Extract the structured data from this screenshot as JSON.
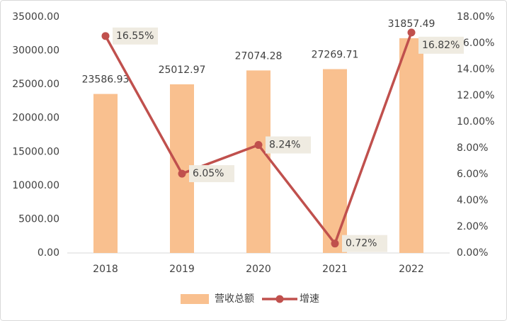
{
  "chart_data": {
    "type": "bar",
    "categories": [
      "2018",
      "2019",
      "2020",
      "2021",
      "2022"
    ],
    "series": [
      {
        "name": "营收总额",
        "type": "bar",
        "color": "#f9c08f",
        "values": [
          23586.93,
          25012.97,
          27074.28,
          27269.71,
          31857.49
        ]
      },
      {
        "name": "增速",
        "type": "line",
        "axis": "y2",
        "color": "#c0504d",
        "values": [
          16.55,
          6.05,
          8.24,
          0.72,
          16.82
        ],
        "value_labels": [
          "16.55%",
          "6.05%",
          "8.24%",
          "0.72%",
          "16.82%"
        ]
      }
    ],
    "ylim": [
      0,
      35000
    ],
    "yticks": [
      {
        "value": 0,
        "label": "0.00"
      },
      {
        "value": 5000,
        "label": "5000.00"
      },
      {
        "value": 10000,
        "label": "10000.00"
      },
      {
        "value": 15000,
        "label": "15000.00"
      },
      {
        "value": 20000,
        "label": "20000.00"
      },
      {
        "value": 25000,
        "label": "25000.00"
      },
      {
        "value": 30000,
        "label": "30000.00"
      },
      {
        "value": 35000,
        "label": "35000.00"
      }
    ],
    "y2lim": [
      0,
      18
    ],
    "y2ticks": [
      {
        "value": 0,
        "label": "0.00%"
      },
      {
        "value": 2,
        "label": "2.00%"
      },
      {
        "value": 4,
        "label": "4.00%"
      },
      {
        "value": 6,
        "label": "6.00%"
      },
      {
        "value": 8,
        "label": "8.00%"
      },
      {
        "value": 10,
        "label": "10.00%"
      },
      {
        "value": 12,
        "label": "12.00%"
      },
      {
        "value": 14,
        "label": "14.00%"
      },
      {
        "value": 16,
        "label": "16.00%"
      },
      {
        "value": 18,
        "label": "18.00%"
      }
    ],
    "legend": "bottom"
  }
}
